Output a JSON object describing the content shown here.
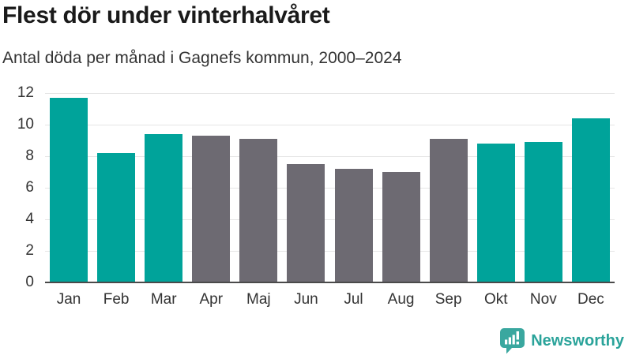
{
  "header": {
    "title": "Flest dör under vinterhalvåret",
    "subtitle": "Antal döda per månad i Gagnefs kommun, 2000–2024"
  },
  "chart_data": {
    "type": "bar",
    "title": "Flest dör under vinterhalvåret",
    "subtitle": "Antal döda per månad i Gagnefs kommun, 2000–2024",
    "categories": [
      "Jan",
      "Feb",
      "Mar",
      "Apr",
      "Maj",
      "Jun",
      "Jul",
      "Aug",
      "Sep",
      "Okt",
      "Nov",
      "Dec"
    ],
    "values": [
      11.7,
      8.2,
      9.4,
      9.3,
      9.1,
      7.5,
      7.2,
      7.0,
      9.1,
      8.8,
      8.9,
      10.4
    ],
    "highlighted": [
      true,
      true,
      true,
      false,
      false,
      false,
      false,
      false,
      false,
      true,
      true,
      true
    ],
    "xlabel": "",
    "ylabel": "",
    "ylim": [
      0,
      12
    ],
    "yticks": [
      0,
      2,
      4,
      6,
      8,
      10,
      12
    ],
    "grid": "horizontal",
    "legend": "none"
  },
  "footer": {
    "brand": "Newsworthy"
  },
  "colors": {
    "highlight": "#00a39a",
    "neutral": "#6d6a72",
    "grid_line": "#e5e5e5",
    "axis_line": "#4a4a4a",
    "title_text": "#1a1a1a",
    "body_text": "#333333",
    "brand": "#2aa39a"
  }
}
